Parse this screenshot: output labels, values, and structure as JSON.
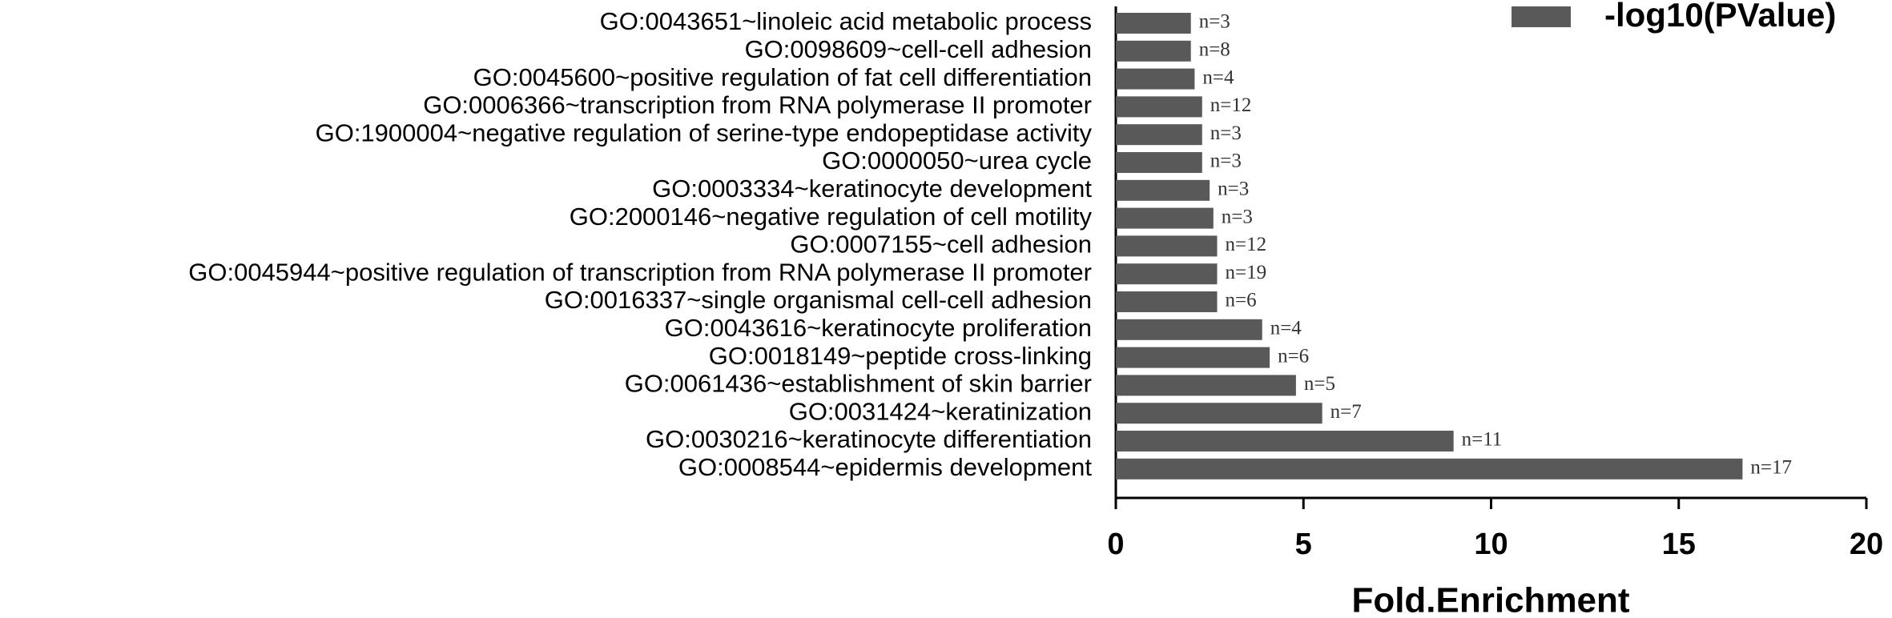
{
  "chart_data": {
    "type": "barh",
    "categories": [
      "GO:0043651~linoleic acid metabolic process",
      "GO:0098609~cell-cell adhesion",
      "GO:0045600~positive regulation of fat cell differentiation",
      "GO:0006366~transcription from RNA polymerase II promoter",
      "GO:1900004~negative regulation of serine-type endopeptidase activity",
      "GO:0000050~urea cycle",
      "GO:0003334~keratinocyte development",
      "GO:2000146~negative regulation of cell motility",
      "GO:0007155~cell adhesion",
      "GO:0045944~positive regulation of transcription from RNA polymerase II promoter",
      "GO:0016337~single organismal cell-cell adhesion",
      "GO:0043616~keratinocyte proliferation",
      "GO:0018149~peptide cross-linking",
      "GO:0061436~establishment of skin barrier",
      "GO:0031424~keratinization",
      "GO:0030216~keratinocyte differentiation",
      "GO:0008544~epidermis development"
    ],
    "series": [
      {
        "name": "-log10(PValue)",
        "color": "#595959",
        "values": [
          2.0,
          2.0,
          2.1,
          2.3,
          2.3,
          2.3,
          2.5,
          2.6,
          2.7,
          2.7,
          2.7,
          3.9,
          4.1,
          4.8,
          5.5,
          9.0,
          16.7
        ]
      }
    ],
    "bar_labels": [
      "n=3",
      "n=8",
      "n=4",
      "n=12",
      "n=3",
      "n=3",
      "n=3",
      "n=3",
      "n=12",
      "n=19",
      "n=6",
      "n=4",
      "n=6",
      "n=5",
      "n=7",
      "n=11",
      "n=17"
    ],
    "x_label": "Fold.Enrichment",
    "xlim": [
      0,
      20
    ],
    "xticks": [
      0,
      5,
      10,
      15,
      20
    ],
    "legend": "top-right"
  }
}
